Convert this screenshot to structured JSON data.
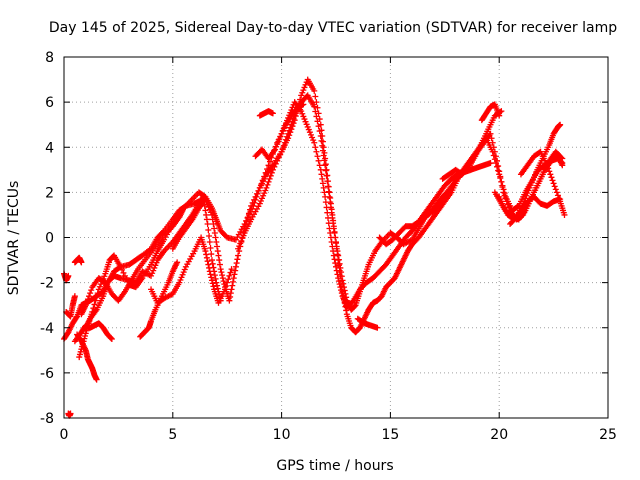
{
  "chart_data": {
    "type": "scatter",
    "title": "Day 145 of 2025, Sidereal Day-to-day VTEC variation (SDTVAR) for receiver lamp",
    "xlabel": "GPS time / hours",
    "ylabel": "SDTVAR / TECUs",
    "xlim": [
      0,
      25
    ],
    "ylim": [
      -8,
      8
    ],
    "x_ticks": [
      0,
      5,
      10,
      15,
      20,
      25
    ],
    "x_tick_labels": [
      "0",
      "5",
      "10",
      "15",
      "20",
      "25"
    ],
    "y_ticks": [
      -8,
      -6,
      -4,
      -2,
      0,
      2,
      4,
      6,
      8
    ],
    "y_tick_labels": [
      "-8",
      "-6",
      "-4",
      "-2",
      "0",
      "2",
      "4",
      "6",
      "8"
    ],
    "grid": true,
    "marker": "plus",
    "color": "#ff0000",
    "series": [
      {
        "x": [
          0.0,
          0.1,
          0.2
        ],
        "y": [
          -1.6,
          -1.9,
          -1.7
        ]
      },
      {
        "x": [
          0.2,
          0.25,
          0.3
        ],
        "y": [
          -7.8,
          -7.9,
          -7.8
        ]
      },
      {
        "x": [
          0.0,
          0.2,
          0.4,
          0.6,
          0.8,
          1.0,
          1.2,
          1.5,
          1.8,
          2.0,
          2.3,
          2.6,
          3.0,
          3.3,
          3.6,
          4.0,
          4.3,
          4.6,
          5.0,
          5.3,
          5.6,
          6.0,
          6.2
        ],
        "y": [
          -4.5,
          -4.2,
          -3.8,
          -3.5,
          -3.0,
          -2.9,
          -2.8,
          -2.6,
          -2.4,
          -2.0,
          -1.5,
          -1.3,
          -1.2,
          -1.0,
          -0.8,
          -0.5,
          0.0,
          0.3,
          0.8,
          1.2,
          1.4,
          1.5,
          1.6
        ]
      },
      {
        "x": [
          0.1,
          0.3,
          0.4,
          0.5
        ],
        "y": [
          -3.3,
          -3.5,
          -3.0,
          -2.6
        ]
      },
      {
        "x": [
          0.5,
          0.6,
          0.7,
          0.8
        ],
        "y": [
          -1.1,
          -1.0,
          -0.9,
          -1.1
        ]
      },
      {
        "x": [
          0.6,
          0.8,
          1.0,
          1.1,
          1.2,
          1.3,
          1.4,
          1.5
        ],
        "y": [
          -4.3,
          -4.6,
          -5.0,
          -5.4,
          -5.6,
          -5.8,
          -6.1,
          -6.3
        ]
      },
      {
        "x": [
          0.5,
          0.8,
          1.0,
          1.2,
          1.4,
          1.6,
          1.8,
          2.0,
          2.2
        ],
        "y": [
          -4.6,
          -4.2,
          -3.9,
          -4.0,
          -3.9,
          -3.8,
          -4.0,
          -4.3,
          -4.5
        ]
      },
      {
        "x": [
          0.7,
          0.9,
          1.1,
          1.3,
          1.6,
          1.9,
          2.1,
          2.3,
          2.6,
          3.0,
          3.3,
          3.6,
          4.0,
          4.3,
          4.6,
          5.0,
          5.4,
          5.8,
          6.2,
          6.5,
          6.8,
          7.0,
          7.2,
          7.5,
          7.9,
          8.3,
          8.7,
          9.0,
          9.4,
          9.8,
          10.2,
          10.5,
          10.8,
          11.0
        ],
        "y": [
          -5.3,
          -4.6,
          -3.9,
          -3.3,
          -2.3,
          -1.6,
          -1.0,
          -0.8,
          -1.3,
          -2.1,
          -2.2,
          -1.8,
          -1.2,
          -0.6,
          -0.1,
          0.6,
          1.2,
          1.6,
          2.0,
          1.8,
          1.3,
          0.8,
          0.3,
          0.0,
          -0.1,
          0.6,
          1.4,
          2.2,
          3.2,
          4.2,
          5.0,
          5.5,
          5.8,
          5.9
        ]
      },
      {
        "x": [
          0.8,
          1.0,
          1.3,
          1.6,
          1.9,
          2.2,
          2.5,
          2.8,
          3.1,
          3.4,
          3.8,
          4.2,
          4.6,
          5.0,
          5.3,
          5.5
        ],
        "y": [
          -3.4,
          -3.0,
          -2.2,
          -1.8,
          -2.0,
          -2.5,
          -2.8,
          -2.4,
          -1.9,
          -1.4,
          -0.9,
          -0.4,
          0.1,
          0.5,
          0.9,
          1.3
        ]
      },
      {
        "x": [
          1.0,
          1.2,
          1.5,
          1.8,
          2.0,
          2.3,
          2.6,
          3.0,
          3.3,
          3.6,
          4.0,
          4.3,
          4.6,
          5.0,
          5.3,
          5.6,
          5.9,
          6.2,
          6.4,
          6.6,
          6.8,
          7.0,
          7.2
        ],
        "y": [
          -4.0,
          -3.6,
          -3.2,
          -2.6,
          -2.0,
          -1.7,
          -1.8,
          -1.9,
          -2.0,
          -1.5,
          -1.7,
          -1.0,
          -0.6,
          -0.2,
          0.2,
          0.6,
          1.0,
          1.5,
          1.8,
          0.6,
          -1.0,
          -2.0,
          -2.8
        ]
      },
      {
        "x": [
          3.5,
          3.7,
          3.9,
          4.0,
          4.2,
          4.5,
          4.8,
          5.0,
          5.2
        ],
        "y": [
          -4.4,
          -4.2,
          -4.0,
          -3.7,
          -3.2,
          -2.6,
          -2.0,
          -1.5,
          -1.1
        ]
      },
      {
        "x": [
          4.0,
          4.3,
          4.6,
          5.0,
          5.3,
          5.6,
          6.0,
          6.3,
          6.5,
          6.7,
          6.9,
          7.1,
          7.4,
          7.7
        ],
        "y": [
          -2.3,
          -2.9,
          -2.7,
          -2.5,
          -2.0,
          -1.3,
          -0.6,
          0.0,
          -0.6,
          -1.5,
          -2.3,
          -2.9,
          -2.3,
          -1.4
        ]
      },
      {
        "x": [
          5.0,
          5.3,
          5.6,
          5.9,
          6.2,
          6.5,
          6.8,
          7.0,
          7.2,
          7.4,
          7.6,
          7.8,
          8.0,
          8.3,
          8.6,
          9.0,
          9.3,
          9.6,
          10.0,
          10.3,
          10.6,
          10.9,
          11.2,
          11.5,
          11.8,
          12.0,
          12.2,
          12.4,
          12.6,
          12.8,
          13.0,
          13.2,
          13.4,
          13.6,
          13.8,
          14.0,
          14.2,
          14.4,
          14.6,
          14.8,
          15.0,
          15.2,
          15.4,
          15.6,
          15.8,
          16.0
        ],
        "y": [
          -0.5,
          0.0,
          0.4,
          0.8,
          1.3,
          1.7,
          1.0,
          -0.2,
          -1.4,
          -2.2,
          -2.8,
          -1.8,
          -0.8,
          0.4,
          1.4,
          2.2,
          2.8,
          3.2,
          3.8,
          4.4,
          5.2,
          6.3,
          7.0,
          6.5,
          5.0,
          3.5,
          2.0,
          0.5,
          -1.0,
          -2.4,
          -3.4,
          -4.0,
          -4.2,
          -4.0,
          -3.6,
          -3.2,
          -2.9,
          -2.8,
          -2.6,
          -2.2,
          -2.0,
          -1.8,
          -1.4,
          -1.0,
          -0.6,
          -0.3
        ]
      },
      {
        "x": [
          8.0,
          8.3,
          8.6,
          9.0,
          9.3,
          9.6,
          10.0,
          10.3,
          10.6,
          10.9,
          11.2,
          11.5,
          11.8,
          12.0,
          12.2,
          12.4,
          12.6,
          12.8,
          13.0,
          13.2,
          13.4,
          13.6,
          13.8,
          14.0,
          14.3,
          14.6,
          15.0,
          15.3,
          15.6,
          16.0,
          16.3,
          16.6,
          17.0,
          17.3,
          17.6
        ],
        "y": [
          -0.5,
          0.2,
          0.8,
          1.5,
          2.2,
          3.0,
          3.8,
          4.6,
          5.4,
          6.0,
          6.3,
          5.8,
          4.5,
          3.2,
          1.8,
          0.4,
          -0.8,
          -1.9,
          -2.8,
          -3.2,
          -3.0,
          -2.4,
          -1.8,
          -1.2,
          -0.6,
          -0.2,
          0.2,
          0.0,
          -0.3,
          -0.1,
          0.4,
          0.9,
          1.3,
          1.7,
          2.0
        ]
      },
      {
        "x": [
          8.8,
          9.1,
          9.4,
          9.7,
          10.0,
          10.3,
          10.6,
          10.9,
          11.2,
          11.5,
          11.8,
          12.0,
          12.2,
          12.4,
          12.6,
          12.8,
          13.0,
          13.3,
          13.6,
          13.9,
          14.2,
          14.5,
          14.8,
          15.1,
          15.4,
          15.7,
          16.0,
          16.3,
          16.6,
          16.9,
          17.2,
          17.5,
          17.8,
          18.1,
          18.4,
          18.7,
          19.0,
          19.3,
          19.6
        ],
        "y": [
          3.6,
          3.9,
          3.5,
          3.9,
          4.6,
          5.3,
          6.0,
          5.6,
          4.9,
          4.2,
          3.0,
          1.8,
          0.4,
          -0.8,
          -1.8,
          -2.6,
          -3.1,
          -2.8,
          -2.3,
          -2.0,
          -1.8,
          -1.5,
          -1.2,
          -0.8,
          -0.4,
          0.0,
          0.3,
          0.7,
          1.1,
          1.5,
          1.9,
          2.3,
          2.6,
          2.8,
          2.9,
          3.0,
          3.1,
          3.2,
          3.3
        ]
      },
      {
        "x": [
          9.0,
          9.2,
          9.4,
          9.6
        ],
        "y": [
          5.4,
          5.5,
          5.6,
          5.5
        ]
      },
      {
        "x": [
          13.5,
          13.8,
          14.1,
          14.4
        ],
        "y": [
          -3.6,
          -3.8,
          -3.9,
          -4.0
        ]
      },
      {
        "x": [
          14.5,
          14.8,
          15.1,
          15.4,
          15.7,
          16.0,
          16.3,
          16.6,
          17.0,
          17.3,
          17.6,
          17.9,
          18.2,
          18.5,
          18.8,
          19.1,
          19.4,
          19.7,
          20.0,
          20.3,
          20.6,
          20.9,
          21.2,
          21.5,
          21.8,
          22.1,
          22.4,
          22.7,
          22.9
        ],
        "y": [
          0.0,
          -0.3,
          -0.1,
          0.2,
          0.5,
          0.5,
          0.7,
          0.9,
          1.2,
          1.6,
          2.0,
          2.4,
          2.8,
          3.2,
          3.6,
          4.0,
          4.4,
          3.8,
          2.8,
          1.8,
          1.2,
          1.4,
          2.0,
          2.5,
          3.0,
          3.2,
          3.4,
          3.5,
          3.3
        ]
      },
      {
        "x": [
          16.0,
          16.3,
          16.6,
          16.9,
          17.2,
          17.5,
          17.8,
          18.1,
          18.4,
          18.7,
          19.0,
          19.3,
          19.6,
          19.9,
          20.2,
          20.5,
          20.8,
          21.1,
          21.4,
          21.7,
          22.0,
          22.3,
          22.6,
          22.9
        ],
        "y": [
          -0.3,
          0.0,
          0.4,
          0.8,
          1.2,
          1.6,
          2.0,
          2.6,
          3.0,
          3.4,
          3.8,
          4.2,
          4.6,
          3.4,
          2.0,
          1.2,
          0.8,
          1.0,
          1.6,
          2.2,
          2.8,
          3.4,
          3.8,
          3.5
        ]
      },
      {
        "x": [
          17.4,
          17.7,
          18.0,
          18.3,
          18.6,
          18.9,
          19.2,
          19.5,
          19.8,
          20.1
        ],
        "y": [
          2.6,
          2.8,
          3.0,
          2.8,
          3.1,
          3.6,
          4.2,
          4.8,
          5.4,
          5.6
        ]
      },
      {
        "x": [
          19.2,
          19.4,
          19.6,
          19.8,
          20.0
        ],
        "y": [
          5.2,
          5.5,
          5.8,
          5.9,
          5.4
        ]
      },
      {
        "x": [
          19.8,
          20.1,
          20.4,
          20.7,
          21.0,
          21.3,
          21.6,
          21.9,
          22.2,
          22.5,
          22.8
        ],
        "y": [
          2.0,
          1.5,
          1.0,
          0.8,
          1.2,
          1.6,
          1.8,
          1.5,
          1.4,
          1.6,
          1.7
        ]
      },
      {
        "x": [
          20.0,
          20.3,
          20.6,
          20.9,
          21.2,
          21.5,
          21.8,
          22.1,
          22.4,
          22.7,
          22.9
        ],
        "y": [
          1.8,
          1.2,
          0.9,
          0.8,
          1.2,
          1.8,
          2.4,
          3.0,
          3.4,
          3.6,
          3.2
        ]
      },
      {
        "x": [
          20.5,
          20.8,
          21.1,
          21.4,
          21.7,
          22.0,
          22.3,
          22.5,
          22.7,
          22.8
        ],
        "y": [
          0.6,
          0.9,
          1.5,
          2.2,
          2.9,
          3.5,
          4.1,
          4.6,
          4.9,
          5.0
        ]
      },
      {
        "x": [
          21.0,
          21.3,
          21.6,
          21.9,
          22.2,
          22.5,
          22.8,
          23.0
        ],
        "y": [
          2.8,
          3.2,
          3.6,
          3.8,
          3.2,
          2.4,
          1.6,
          1.0
        ]
      }
    ]
  }
}
